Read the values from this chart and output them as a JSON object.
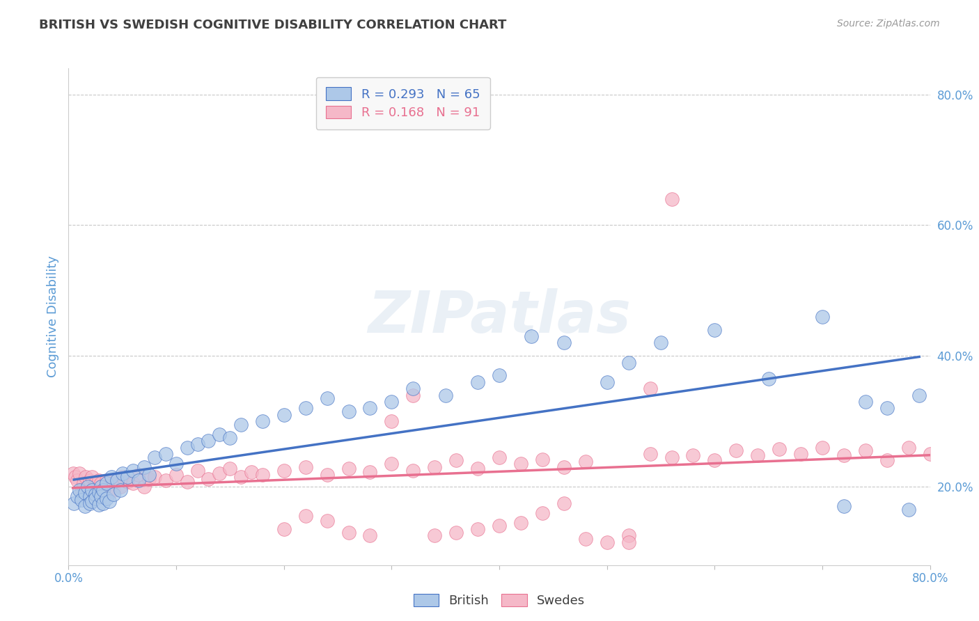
{
  "title": "BRITISH VS SWEDISH COGNITIVE DISABILITY CORRELATION CHART",
  "source": "Source: ZipAtlas.com",
  "ylabel": "Cognitive Disability",
  "right_yticks": [
    0.2,
    0.4,
    0.6,
    0.8
  ],
  "right_yticklabels": [
    "20.0%",
    "40.0%",
    "60.0%",
    "80.0%"
  ],
  "xticks": [
    0.0,
    0.1,
    0.2,
    0.3,
    0.4,
    0.5,
    0.6,
    0.7,
    0.8
  ],
  "xticklabels": [
    "0.0%",
    "",
    "",
    "",
    "",
    "",
    "",
    "",
    "80.0%"
  ],
  "xlim": [
    0.0,
    0.8
  ],
  "ylim": [
    0.08,
    0.84
  ],
  "british_R": 0.293,
  "british_N": 65,
  "swedes_R": 0.168,
  "swedes_N": 91,
  "british_color": "#adc8e8",
  "swedes_color": "#f5b8c8",
  "british_line_color": "#4472c4",
  "swedes_line_color": "#e87090",
  "title_color": "#404040",
  "axis_color": "#5b9bd5",
  "grid_color": "#c8c8c8",
  "background_color": "#ffffff",
  "legend_box_color": "#f8f8f8",
  "watermark_color": "#dce6f0",
  "british_x": [
    0.005,
    0.008,
    0.01,
    0.012,
    0.015,
    0.015,
    0.018,
    0.02,
    0.02,
    0.022,
    0.022,
    0.025,
    0.025,
    0.028,
    0.028,
    0.03,
    0.03,
    0.032,
    0.032,
    0.035,
    0.035,
    0.038,
    0.04,
    0.042,
    0.045,
    0.048,
    0.05,
    0.055,
    0.06,
    0.065,
    0.07,
    0.075,
    0.08,
    0.09,
    0.1,
    0.11,
    0.12,
    0.13,
    0.14,
    0.15,
    0.16,
    0.18,
    0.2,
    0.22,
    0.24,
    0.26,
    0.28,
    0.3,
    0.32,
    0.35,
    0.38,
    0.4,
    0.43,
    0.46,
    0.5,
    0.52,
    0.55,
    0.6,
    0.65,
    0.7,
    0.72,
    0.74,
    0.76,
    0.78,
    0.79
  ],
  "british_y": [
    0.175,
    0.185,
    0.195,
    0.18,
    0.19,
    0.17,
    0.2,
    0.185,
    0.175,
    0.195,
    0.178,
    0.188,
    0.182,
    0.192,
    0.172,
    0.2,
    0.185,
    0.195,
    0.175,
    0.205,
    0.182,
    0.178,
    0.215,
    0.188,
    0.21,
    0.195,
    0.22,
    0.215,
    0.225,
    0.21,
    0.23,
    0.218,
    0.245,
    0.25,
    0.235,
    0.26,
    0.265,
    0.27,
    0.28,
    0.275,
    0.295,
    0.3,
    0.31,
    0.32,
    0.335,
    0.315,
    0.32,
    0.33,
    0.35,
    0.34,
    0.36,
    0.37,
    0.43,
    0.42,
    0.36,
    0.39,
    0.42,
    0.44,
    0.365,
    0.46,
    0.17,
    0.33,
    0.32,
    0.165,
    0.34
  ],
  "swedes_x": [
    0.004,
    0.006,
    0.008,
    0.01,
    0.012,
    0.014,
    0.016,
    0.018,
    0.02,
    0.022,
    0.022,
    0.025,
    0.025,
    0.028,
    0.028,
    0.03,
    0.032,
    0.035,
    0.035,
    0.038,
    0.04,
    0.042,
    0.045,
    0.048,
    0.05,
    0.055,
    0.06,
    0.065,
    0.07,
    0.075,
    0.08,
    0.09,
    0.1,
    0.11,
    0.12,
    0.13,
    0.14,
    0.15,
    0.16,
    0.17,
    0.18,
    0.2,
    0.22,
    0.24,
    0.26,
    0.28,
    0.3,
    0.32,
    0.34,
    0.36,
    0.38,
    0.4,
    0.42,
    0.44,
    0.46,
    0.48,
    0.5,
    0.52,
    0.54,
    0.56,
    0.58,
    0.6,
    0.62,
    0.64,
    0.66,
    0.68,
    0.7,
    0.72,
    0.74,
    0.76,
    0.78,
    0.8,
    0.56,
    0.54,
    0.52,
    0.48,
    0.46,
    0.44,
    0.42,
    0.4,
    0.38,
    0.36,
    0.34,
    0.32,
    0.3,
    0.28,
    0.26,
    0.24,
    0.22,
    0.2
  ],
  "swedes_y": [
    0.22,
    0.215,
    0.21,
    0.22,
    0.195,
    0.205,
    0.215,
    0.2,
    0.21,
    0.195,
    0.215,
    0.205,
    0.2,
    0.195,
    0.21,
    0.205,
    0.195,
    0.2,
    0.21,
    0.195,
    0.205,
    0.195,
    0.21,
    0.2,
    0.215,
    0.208,
    0.205,
    0.218,
    0.2,
    0.212,
    0.215,
    0.21,
    0.218,
    0.208,
    0.225,
    0.212,
    0.22,
    0.228,
    0.215,
    0.222,
    0.218,
    0.225,
    0.23,
    0.218,
    0.228,
    0.222,
    0.235,
    0.225,
    0.23,
    0.24,
    0.228,
    0.245,
    0.235,
    0.242,
    0.23,
    0.238,
    0.115,
    0.125,
    0.25,
    0.245,
    0.248,
    0.24,
    0.255,
    0.248,
    0.258,
    0.25,
    0.26,
    0.248,
    0.255,
    0.24,
    0.26,
    0.25,
    0.64,
    0.35,
    0.115,
    0.12,
    0.175,
    0.16,
    0.145,
    0.14,
    0.135,
    0.13,
    0.125,
    0.34,
    0.3,
    0.125,
    0.13,
    0.148,
    0.155,
    0.135
  ]
}
